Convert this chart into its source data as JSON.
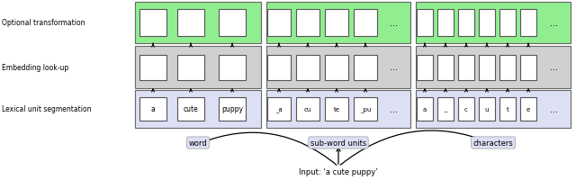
{
  "fig_width": 6.4,
  "fig_height": 2.01,
  "dpi": 100,
  "bg_color": "#ffffff",
  "green_color": "#90ee90",
  "gray_color": "#d0d0d0",
  "blue_color": "#dde0f5",
  "row_labels": [
    "Optional transformation",
    "Embedding look-up",
    "Lexical unit segmentation"
  ],
  "col_labels": [
    "word",
    "sub-word units",
    "characters"
  ],
  "input_label": "Input: ‘a cute puppy’",
  "word_tokens": [
    "a",
    "cute",
    "puppy"
  ],
  "subword_tokens": [
    "_a",
    "cu",
    "te",
    "_pu"
  ],
  "char_tokens": [
    "a",
    "_",
    "c",
    "u",
    "t",
    "e"
  ]
}
